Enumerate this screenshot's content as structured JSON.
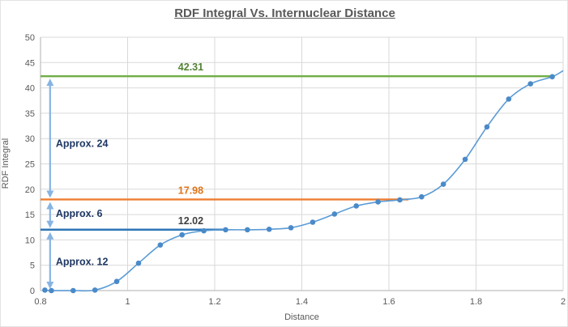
{
  "chart_data": {
    "type": "line",
    "title": "RDF Integral Vs. Internuclear Distance",
    "xlabel": "Distance",
    "ylabel": "RDF Integral",
    "xlim": [
      0.8,
      2.0
    ],
    "ylim": [
      0,
      50
    ],
    "x_ticks": [
      0.8,
      1,
      1.2,
      1.4,
      1.6,
      1.8,
      2
    ],
    "x_tick_labels": [
      "0.8",
      "1",
      "1.2",
      "1.4",
      "1.6",
      "1.8",
      "2"
    ],
    "y_ticks": [
      0,
      5,
      10,
      15,
      20,
      25,
      30,
      35,
      40,
      45,
      50
    ],
    "grid": true,
    "legend": "none",
    "series": [
      {
        "name": "RDF Integral",
        "color": "#5B9BD5",
        "marker_color": "#4A8AC9",
        "smooth": true,
        "x": [
          0.81,
          0.825,
          0.875,
          0.925,
          0.975,
          1.025,
          1.075,
          1.125,
          1.175,
          1.225,
          1.275,
          1.325,
          1.375,
          1.425,
          1.475,
          1.525,
          1.575,
          1.625,
          1.675,
          1.725,
          1.775,
          1.825,
          1.875,
          1.925,
          1.975
        ],
        "y": [
          0.1,
          0.0,
          0.0,
          0.1,
          1.8,
          5.4,
          9.0,
          11.0,
          11.8,
          12.0,
          12.0,
          12.1,
          12.4,
          13.5,
          15.1,
          16.7,
          17.5,
          17.9,
          18.5,
          21.0,
          25.9,
          32.3,
          37.8,
          40.8,
          42.2
        ],
        "line_end": {
          "x": 2.0,
          "y": 43.4
        }
      }
    ],
    "reference_lines": [
      {
        "label": "42.31",
        "value": 42.31,
        "color": "#70AD47",
        "label_color": "#548235",
        "x_start": 0.8,
        "x_end": 1.98,
        "label_x": 1.145
      },
      {
        "label": "17.98",
        "value": 17.98,
        "color": "#ED7D31",
        "label_color": "#E07318",
        "x_start": 0.8,
        "x_end": 1.645,
        "label_x": 1.145
      },
      {
        "label": "12.02",
        "value": 12.02,
        "color": "#2E75B6",
        "label_color": "#404040",
        "x_start": 0.8,
        "x_end": 1.228,
        "label_x": 1.145
      }
    ],
    "annotations": [
      {
        "label": "Approx. 24",
        "x": 0.822,
        "y_top": 42.31,
        "y_bottom": 17.98,
        "label_x": 0.835,
        "label_y": 29.0
      },
      {
        "label": "Approx. 6",
        "x": 0.822,
        "y_top": 17.98,
        "y_bottom": 12.02,
        "label_x": 0.835,
        "label_y": 15.2
      },
      {
        "label": "Approx. 12",
        "x": 0.822,
        "y_top": 12.02,
        "y_bottom": 0.0,
        "label_x": 0.835,
        "label_y": 5.7
      }
    ],
    "colors": {
      "grid": "#D9D9D9",
      "axis": "#BFBFBF",
      "tick_text": "#595959",
      "title_text": "#595959",
      "annotation_text": "#1F3864",
      "arrow": "#86B4E3",
      "background": "#FFFFFF"
    }
  }
}
